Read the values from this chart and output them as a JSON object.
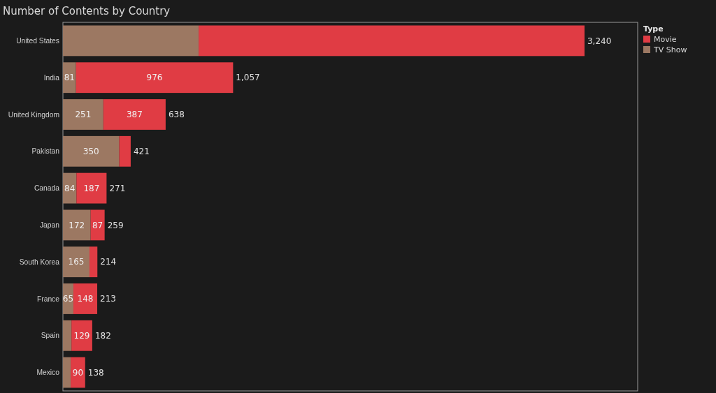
{
  "chart_data": {
    "type": "bar",
    "orientation": "horizontal",
    "stacked": true,
    "title": "Number of Contents by Country",
    "legend_title": "Type",
    "legend": "top right",
    "categories": [
      "United States",
      "India",
      "United Kingdom",
      "Pakistan",
      "Canada",
      "Japan",
      "South Korea",
      "France",
      "Spain",
      "Mexico"
    ],
    "series": [
      {
        "name": "TV Show",
        "color": "#9c7862",
        "values": [
          843,
          81,
          251,
          350,
          84,
          172,
          165,
          65,
          53,
          48
        ],
        "value_labels": [
          null,
          "81",
          "251",
          "350",
          "84",
          "172",
          "165",
          "65",
          null,
          null
        ]
      },
      {
        "name": "Movie",
        "color": "#e03c44",
        "values": [
          2397,
          976,
          387,
          71,
          187,
          87,
          49,
          148,
          129,
          90
        ],
        "value_labels": [
          null,
          "976",
          "387",
          null,
          "187",
          "87",
          null,
          "148",
          "129",
          "90"
        ]
      }
    ],
    "totals": [
      "3,240",
      "1,057",
      "638",
      "421",
      "271",
      "259",
      "214",
      "213",
      "182",
      "138"
    ]
  }
}
